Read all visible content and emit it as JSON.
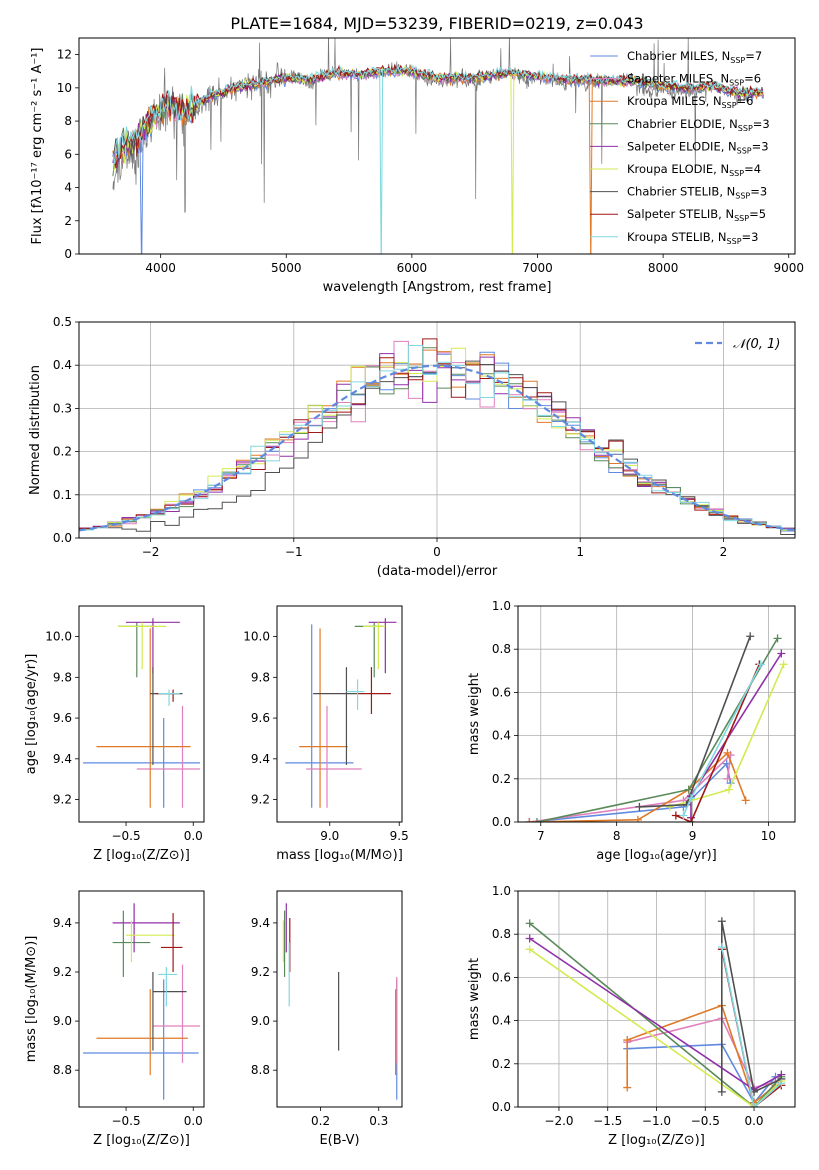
{
  "figure": {
    "title": "PLATE=1684, MJD=53239, FIBERID=0219, z=0.043"
  },
  "series": [
    {
      "key": "cm",
      "label": "Chabrier MILES",
      "nssp": "7",
      "color": "#5f8ae0"
    },
    {
      "key": "sm",
      "label": "Salpeter MILES",
      "nssp": "6",
      "color": "#e07fbd"
    },
    {
      "key": "km",
      "label": "Kroupa MILES",
      "nssp": "6",
      "color": "#e07a28"
    },
    {
      "key": "ce",
      "label": "Chabrier ELODIE",
      "nssp": "3",
      "color": "#5a8a5a"
    },
    {
      "key": "se",
      "label": "Salpeter ELODIE",
      "nssp": "3",
      "color": "#9030a8"
    },
    {
      "key": "ke",
      "label": "Kroupa ELODIE",
      "nssp": "4",
      "color": "#d4ea50"
    },
    {
      "key": "cs",
      "label": "Chabrier STELIB",
      "nssp": "3",
      "color": "#505050"
    },
    {
      "key": "ss",
      "label": "Salpeter STELIB",
      "nssp": "5",
      "color": "#a01818"
    },
    {
      "key": "ks",
      "label": "Kroupa STELIB",
      "nssp": "3",
      "color": "#80d8e0"
    }
  ],
  "legend_nssp_prefix": "N",
  "legend_nssp_sub": "SSP",
  "chart_data": [
    {
      "id": "spectrum",
      "type": "line",
      "xlabel": "wavelength [Angstrom, rest frame]",
      "ylabel": "Flux [fλ10⁻¹⁷ erg cm⁻² s⁻¹ A⁻¹]",
      "xlim": [
        3350,
        9050
      ],
      "ylim": [
        0,
        13
      ],
      "xticks": [
        "4000",
        "5000",
        "6000",
        "7000",
        "8000",
        "9000"
      ],
      "yticks": [
        "0",
        "2",
        "4",
        "6",
        "8",
        "10",
        "12"
      ],
      "legend": "top-right",
      "observed_x": [
        3620,
        3700,
        3800,
        3900,
        4000,
        4100,
        4200,
        4300,
        4400,
        4500,
        4600,
        4700,
        4800,
        4900,
        5000,
        5100,
        5200,
        5300,
        5400,
        5500,
        5600,
        5700,
        5800,
        5900,
        6000,
        6100,
        6200,
        6300,
        6400,
        6500,
        6600,
        6700,
        6800,
        6900,
        7000,
        7100,
        7200,
        7300,
        7400,
        7500,
        7600,
        7700,
        7800,
        7900,
        8000,
        8100,
        8200,
        8300,
        8400,
        8500,
        8600,
        8700,
        8800
      ],
      "observed_y": [
        4.5,
        6.2,
        5.8,
        7.8,
        8.4,
        8.8,
        8.2,
        8.9,
        9.6,
        9.7,
        10.0,
        10.3,
        10.2,
        10.4,
        10.7,
        10.6,
        10.1,
        10.8,
        11.0,
        10.9,
        10.7,
        10.9,
        11.0,
        11.1,
        11.0,
        10.6,
        10.4,
        10.3,
        10.6,
        10.2,
        10.7,
        10.9,
        10.9,
        10.4,
        10.7,
        10.4,
        10.3,
        10.5,
        10.2,
        10.3,
        10.5,
        10.6,
        10.1,
        9.8,
        10.0,
        9.7,
        9.8,
        9.9,
        10.2,
        9.8,
        9.4,
        9.6,
        9.6
      ],
      "model_x": [
        3620,
        3700,
        3800,
        3900,
        4000,
        4100,
        4200,
        4300,
        4400,
        4600,
        4800,
        5000,
        5200,
        5400,
        5600,
        5800,
        6000,
        6200,
        6400,
        6600,
        6800,
        7000,
        7200,
        7400,
        7600,
        7800,
        8000,
        8200,
        8400,
        8600,
        8800
      ],
      "model_y": [
        5.6,
        6.4,
        6.8,
        7.9,
        8.7,
        9.0,
        8.6,
        9.1,
        9.5,
        10.0,
        10.3,
        10.6,
        10.5,
        10.9,
        10.8,
        11.0,
        11.0,
        10.6,
        10.6,
        10.7,
        10.9,
        10.7,
        10.5,
        10.5,
        10.4,
        10.4,
        10.1,
        10.0,
        10.1,
        9.7,
        9.7
      ]
    },
    {
      "id": "residuals",
      "type": "histogram",
      "xlabel": "(data-model)/error",
      "ylabel": "Normed distribution",
      "xlim": [
        -2.5,
        2.5
      ],
      "ylim": [
        0,
        0.5
      ],
      "xticks": [
        "−2",
        "−1",
        "0",
        "1",
        "2"
      ],
      "yticks": [
        "0.0",
        "0.1",
        "0.2",
        "0.3",
        "0.4",
        "0.5"
      ],
      "legend": "top-right",
      "reference_label": "𝒩(0, 1)",
      "reference_color": "#5f8ae0"
    },
    {
      "id": "age-vs-z",
      "type": "scatter",
      "xlabel": "Z [log₁₀(Z/Z⊙)]",
      "ylabel": "age  [log₁₀(age/yr)]",
      "xlim": [
        -0.85,
        0.08
      ],
      "ylim": [
        9.09,
        10.15
      ],
      "xticks": [
        "−0.5",
        "0.0"
      ],
      "yticks": [
        "9.2",
        "9.4",
        "9.6",
        "9.8",
        "10.0"
      ],
      "points": [
        {
          "s": "cm",
          "x": -0.22,
          "y": 9.38,
          "xe": [
            -0.82,
            0.05
          ],
          "ye": [
            9.16,
            9.6
          ]
        },
        {
          "s": "sm",
          "x": -0.08,
          "y": 9.35,
          "xe": [
            -0.42,
            0.05
          ],
          "ye": [
            9.16,
            9.66
          ]
        },
        {
          "s": "km",
          "x": -0.32,
          "y": 9.46,
          "xe": [
            -0.72,
            -0.02
          ],
          "ye": [
            9.16,
            10.04
          ]
        },
        {
          "s": "ce",
          "x": -0.42,
          "y": 10.05,
          "xe": [
            -0.56,
            -0.28
          ],
          "ye": [
            9.8,
            10.07
          ]
        },
        {
          "s": "se",
          "x": -0.3,
          "y": 10.07,
          "xe": [
            -0.5,
            -0.1
          ],
          "ye": [
            9.82,
            10.09
          ]
        },
        {
          "s": "ke",
          "x": -0.38,
          "y": 10.05,
          "xe": [
            -0.56,
            -0.2
          ],
          "ye": [
            9.84,
            10.07
          ]
        },
        {
          "s": "cs",
          "x": -0.3,
          "y": 9.72,
          "xe": [
            -0.32,
            -0.08
          ],
          "ye": [
            9.37,
            9.85
          ]
        },
        {
          "s": "ss",
          "x": -0.15,
          "y": 9.72,
          "xe": [
            -0.28,
            -0.1
          ],
          "ye": [
            9.68,
            9.74
          ]
        },
        {
          "s": "ks",
          "x": -0.18,
          "y": 9.72,
          "xe": [
            -0.26,
            -0.1
          ],
          "ye": [
            9.66,
            9.74
          ]
        }
      ]
    },
    {
      "id": "age-vs-mass",
      "type": "scatter",
      "xlabel": "mass [log₁₀(M/M⊙)]",
      "ylabel": "",
      "xlim": [
        8.62,
        9.52
      ],
      "ylim": [
        9.09,
        10.15
      ],
      "xticks": [
        "9.0",
        "9.5"
      ],
      "yticks": [
        "9.2",
        "9.4",
        "9.6",
        "9.8",
        "10.0"
      ],
      "points": [
        {
          "s": "cm",
          "x": 8.87,
          "y": 9.38,
          "xe": [
            8.68,
            9.17
          ],
          "ye": [
            9.16,
            10.06
          ]
        },
        {
          "s": "sm",
          "x": 8.98,
          "y": 9.35,
          "xe": [
            8.83,
            9.23
          ],
          "ye": [
            9.16,
            9.66
          ]
        },
        {
          "s": "km",
          "x": 8.93,
          "y": 9.46,
          "xe": [
            8.78,
            9.13
          ],
          "ye": [
            9.16,
            10.04
          ]
        },
        {
          "s": "ce",
          "x": 9.32,
          "y": 10.05,
          "xe": [
            9.18,
            9.38
          ],
          "ye": [
            9.8,
            10.07
          ]
        },
        {
          "s": "se",
          "x": 9.4,
          "y": 10.07,
          "xe": [
            9.28,
            9.48
          ],
          "ye": [
            9.82,
            10.09
          ]
        },
        {
          "s": "ke",
          "x": 9.35,
          "y": 10.05,
          "xe": [
            9.24,
            9.4
          ],
          "ye": [
            9.84,
            10.07
          ]
        },
        {
          "s": "cs",
          "x": 9.12,
          "y": 9.72,
          "xe": [
            8.88,
            9.2
          ],
          "ye": [
            9.37,
            9.85
          ]
        },
        {
          "s": "ss",
          "x": 9.3,
          "y": 9.72,
          "xe": [
            9.2,
            9.44
          ],
          "ye": [
            9.62,
            9.85
          ]
        },
        {
          "s": "ks",
          "x": 9.2,
          "y": 9.73,
          "xe": [
            9.12,
            9.25
          ],
          "ye": [
            9.64,
            9.79
          ]
        }
      ]
    },
    {
      "id": "weight-vs-age",
      "type": "line",
      "xlabel": "age  [log₁₀(age/yr)]",
      "ylabel": "mass weight",
      "xlim": [
        6.7,
        10.35
      ],
      "ylim": [
        0,
        1
      ],
      "xticks": [
        "7",
        "8",
        "9",
        "10"
      ],
      "yticks": [
        "0.0",
        "0.2",
        "0.4",
        "0.6",
        "0.8",
        "1.0"
      ],
      "lines": [
        {
          "s": "cm",
          "x": [
            6.85,
            8.88,
            9.45,
            9.5
          ],
          "y": [
            0.0,
            0.07,
            0.27,
            0.18
          ]
        },
        {
          "s": "sm",
          "x": [
            6.85,
            8.88,
            9.5,
            9.46
          ],
          "y": [
            0.0,
            0.1,
            0.31,
            0.2
          ]
        },
        {
          "s": "km",
          "x": [
            6.85,
            8.28,
            8.95,
            9.46,
            9.7
          ],
          "y": [
            0.0,
            0.01,
            0.15,
            0.32,
            0.1
          ]
        },
        {
          "s": "ce",
          "x": [
            6.95,
            8.95,
            10.12
          ],
          "y": [
            0.0,
            0.15,
            0.85
          ]
        },
        {
          "s": "se",
          "x": [
            8.98,
            8.98,
            10.17
          ],
          "y": [
            0.02,
            0.12,
            0.78
          ]
        },
        {
          "s": "ke",
          "x": [
            8.7,
            9.48,
            10.2
          ],
          "y": [
            0.07,
            0.15,
            0.73
          ]
        },
        {
          "s": "cs",
          "x": [
            8.3,
            8.92,
            9.76
          ],
          "y": [
            0.07,
            0.08,
            0.86
          ]
        },
        {
          "s": "ss",
          "x": [
            8.78,
            8.98,
            9.88
          ],
          "y": [
            0.03,
            0.0,
            0.73
          ]
        },
        {
          "s": "ks",
          "x": [
            8.88,
            8.98,
            9.9
          ],
          "y": [
            0.03,
            0.11,
            0.73
          ]
        }
      ]
    },
    {
      "id": "mass-vs-z",
      "type": "scatter",
      "xlabel": "Z [log₁₀(Z/Z⊙)]",
      "ylabel": "mass [log₁₀(M/M⊙)]",
      "xlim": [
        -0.85,
        0.08
      ],
      "ylim": [
        8.65,
        9.53
      ],
      "xticks": [
        "−0.5",
        "0.0"
      ],
      "yticks": [
        "8.8",
        "9.0",
        "9.2",
        "9.4"
      ],
      "points": [
        {
          "s": "cm",
          "x": -0.22,
          "y": 8.87,
          "xe": [
            -0.82,
            0.04
          ],
          "ye": [
            8.68,
            9.17
          ]
        },
        {
          "s": "sm",
          "x": -0.08,
          "y": 8.98,
          "xe": [
            -0.3,
            0.05
          ],
          "ye": [
            8.83,
            9.23
          ]
        },
        {
          "s": "km",
          "x": -0.32,
          "y": 8.93,
          "xe": [
            -0.72,
            -0.04
          ],
          "ye": [
            8.78,
            9.13
          ]
        },
        {
          "s": "ce",
          "x": -0.52,
          "y": 9.32,
          "xe": [
            -0.6,
            -0.32
          ],
          "ye": [
            9.18,
            9.45
          ]
        },
        {
          "s": "se",
          "x": -0.44,
          "y": 9.4,
          "xe": [
            -0.6,
            -0.1
          ],
          "ye": [
            9.28,
            9.48
          ]
        },
        {
          "s": "ke",
          "x": -0.46,
          "y": 9.35,
          "xe": [
            -0.5,
            -0.14
          ],
          "ye": [
            9.24,
            9.41
          ]
        },
        {
          "s": "cs",
          "x": -0.3,
          "y": 9.12,
          "xe": [
            -0.3,
            -0.05
          ],
          "ye": [
            8.88,
            9.2
          ]
        },
        {
          "s": "ss",
          "x": -0.15,
          "y": 9.3,
          "xe": [
            -0.24,
            -0.08
          ],
          "ye": [
            9.2,
            9.44
          ]
        },
        {
          "s": "ks",
          "x": -0.2,
          "y": 9.19,
          "xe": [
            -0.26,
            -0.12
          ],
          "ye": [
            9.06,
            9.22
          ]
        }
      ]
    },
    {
      "id": "mass-vs-ebv",
      "type": "scatter",
      "xlabel": "E(B-V)",
      "ylabel": "",
      "xlim": [
        0.125,
        0.34
      ],
      "ylim": [
        8.65,
        9.53
      ],
      "xticks": [
        "0.2",
        "0.3"
      ],
      "yticks": [
        "8.8",
        "9.0",
        "9.2",
        "9.4"
      ],
      "points": [
        {
          "s": "cm",
          "x": 0.331,
          "y": 8.87,
          "ye": [
            8.68,
            9.17
          ]
        },
        {
          "s": "sm",
          "x": 0.331,
          "y": 8.98,
          "ye": [
            8.83,
            9.18
          ]
        },
        {
          "s": "km",
          "x": 0.329,
          "y": 8.93,
          "ye": [
            8.78,
            9.13
          ]
        },
        {
          "s": "ce",
          "x": 0.138,
          "y": 9.32,
          "ye": [
            9.18,
            9.45
          ]
        },
        {
          "s": "se",
          "x": 0.141,
          "y": 9.4,
          "ye": [
            9.28,
            9.48
          ]
        },
        {
          "s": "ke",
          "x": 0.136,
          "y": 9.35,
          "ye": [
            9.24,
            9.41
          ]
        },
        {
          "s": "cs",
          "x": 0.231,
          "y": 9.12,
          "ye": [
            8.88,
            9.2
          ]
        },
        {
          "s": "ss",
          "x": 0.147,
          "y": 9.3,
          "ye": [
            9.2,
            9.42
          ]
        },
        {
          "s": "ks",
          "x": 0.146,
          "y": 9.19,
          "ye": [
            9.06,
            9.32
          ]
        }
      ]
    },
    {
      "id": "weight-vs-z",
      "type": "line",
      "xlabel": "Z [log₁₀(Z/Z⊙)]",
      "ylabel": "mass weight",
      "xlim": [
        -2.42,
        0.42
      ],
      "ylim": [
        0,
        1
      ],
      "xticks": [
        "−2.0",
        "−1.5",
        "−1.0",
        "−0.5",
        "0.0"
      ],
      "yticks": [
        "0.0",
        "0.2",
        "0.4",
        "0.6",
        "0.8",
        "1.0"
      ],
      "lines": [
        {
          "s": "cm",
          "x": [
            -1.3,
            -0.33,
            0.0,
            0.22
          ],
          "y": [
            0.27,
            0.29,
            0.02,
            0.14
          ]
        },
        {
          "s": "sm",
          "x": [
            -1.3,
            -0.33,
            0.0,
            0.25
          ],
          "y": [
            0.3,
            0.41,
            0.09,
            0.12
          ]
        },
        {
          "s": "km",
          "x": [
            -1.3,
            -1.3,
            -0.33,
            0.0,
            0.22
          ],
          "y": [
            0.09,
            0.31,
            0.47,
            0.02,
            0.1
          ]
        },
        {
          "s": "ce",
          "x": [
            -2.3,
            0.0,
            0.28
          ],
          "y": [
            0.85,
            0.0,
            0.14
          ]
        },
        {
          "s": "se",
          "x": [
            -2.3,
            0.0,
            0.28
          ],
          "y": [
            0.78,
            0.08,
            0.15
          ]
        },
        {
          "s": "ke",
          "x": [
            -2.3,
            0.0,
            0.28
          ],
          "y": [
            0.73,
            0.0,
            0.12
          ]
        },
        {
          "s": "cs",
          "x": [
            -0.33,
            -0.33,
            0.0,
            0.28
          ],
          "y": [
            0.07,
            0.86,
            0.07,
            0.13
          ]
        },
        {
          "s": "ss",
          "x": [
            -0.33,
            0.0,
            0.28
          ],
          "y": [
            0.73,
            0.0,
            0.1
          ]
        },
        {
          "s": "ks",
          "x": [
            -0.33,
            0.0,
            0.28
          ],
          "y": [
            0.74,
            0.0,
            0.11
          ]
        }
      ]
    }
  ]
}
